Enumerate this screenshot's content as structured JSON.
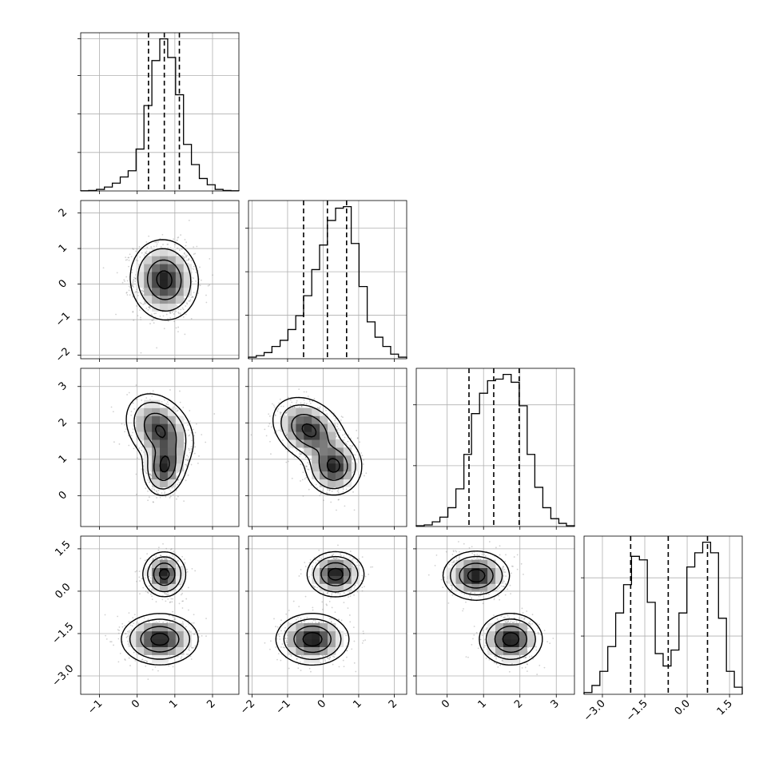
{
  "chart_data": {
    "type": "corner",
    "n_params": 4,
    "grid": true,
    "colors": {
      "ink": "#000000",
      "grid": "#b0b0b0",
      "frame": "#000000",
      "background": "#ffffff"
    },
    "parameters": [
      {
        "range": [
          -1.5,
          2.7
        ],
        "ticks": [
          -1,
          0,
          1,
          2
        ],
        "tick_labels": [
          "−1",
          "0",
          "1",
          "2"
        ]
      },
      {
        "range": [
          -2.1,
          2.35
        ],
        "ticks": [
          -2,
          -1,
          0,
          1,
          2
        ],
        "tick_labels": [
          "−2",
          "−1",
          "0",
          "1",
          "2"
        ]
      },
      {
        "range": [
          -0.85,
          3.5
        ],
        "ticks": [
          0,
          1,
          2,
          3
        ],
        "tick_labels": [
          "0",
          "1",
          "2",
          "3"
        ]
      },
      {
        "range": [
          -3.65,
          1.95
        ],
        "ticks": [
          -3.0,
          -1.5,
          0.0,
          1.5
        ],
        "tick_labels": [
          "−3.0",
          "−1.5",
          "0.0",
          "1.5"
        ]
      }
    ],
    "histograms": [
      {
        "bins": [
          -1.5,
          -1.29,
          -1.08,
          -0.87,
          -0.66,
          -0.45,
          -0.24,
          -0.03,
          0.18,
          0.39,
          0.6,
          0.81,
          1.02,
          1.23,
          1.44,
          1.65,
          1.86,
          2.07,
          2.28,
          2.49,
          2.7
        ],
        "counts": [
          0.001,
          0.003,
          0.01,
          0.025,
          0.05,
          0.09,
          0.13,
          0.27,
          0.55,
          0.84,
          0.98,
          0.86,
          0.62,
          0.3,
          0.17,
          0.08,
          0.04,
          0.01,
          0.003,
          0.001
        ],
        "quantiles": [
          0.3,
          0.72,
          1.12
        ],
        "ytick_fracs": [
          0.253,
          0.506,
          0.759,
          1.0
        ]
      },
      {
        "bins": [
          -2.1,
          -1.88,
          -1.66,
          -1.44,
          -1.21,
          -0.99,
          -0.77,
          -0.55,
          -0.32,
          -0.1,
          0.12,
          0.35,
          0.57,
          0.79,
          1.01,
          1.24,
          1.46,
          1.68,
          1.9,
          2.12,
          2.35
        ],
        "counts": [
          0.01,
          0.02,
          0.04,
          0.08,
          0.12,
          0.19,
          0.28,
          0.41,
          0.58,
          0.74,
          0.9,
          0.98,
          0.99,
          0.75,
          0.47,
          0.24,
          0.14,
          0.08,
          0.03,
          0.01
        ],
        "quantiles": [
          -0.55,
          0.12,
          0.66
        ],
        "ytick_fracs": [
          0.286,
          0.572,
          0.858
        ]
      },
      {
        "bins": [
          -0.85,
          -0.63,
          -0.41,
          -0.2,
          0.02,
          0.24,
          0.46,
          0.67,
          0.89,
          1.11,
          1.33,
          1.54,
          1.76,
          1.98,
          2.2,
          2.41,
          2.63,
          2.85,
          3.07,
          3.28,
          3.5
        ],
        "counts": [
          0.005,
          0.01,
          0.03,
          0.06,
          0.12,
          0.24,
          0.46,
          0.72,
          0.85,
          0.93,
          0.94,
          0.97,
          0.92,
          0.77,
          0.46,
          0.25,
          0.12,
          0.05,
          0.02,
          0.005
        ],
        "quantiles": [
          0.6,
          1.28,
          1.98
        ],
        "ytick_fracs": [
          0.4,
          0.8
        ]
      },
      {
        "bins": [
          -3.65,
          -3.37,
          -3.09,
          -2.81,
          -2.53,
          -2.25,
          -1.97,
          -1.69,
          -1.41,
          -1.13,
          -0.85,
          -0.57,
          -0.29,
          -0.01,
          0.27,
          0.55,
          0.83,
          1.11,
          1.39,
          1.67,
          1.95
        ],
        "counts": [
          0.01,
          0.05,
          0.13,
          0.27,
          0.46,
          0.62,
          0.78,
          0.76,
          0.52,
          0.23,
          0.16,
          0.25,
          0.46,
          0.72,
          0.8,
          0.86,
          0.8,
          0.43,
          0.13,
          0.04
        ],
        "quantiles": [
          -2.0,
          -0.67,
          0.72
        ],
        "ytick_fracs": [
          0.383,
          0.766
        ]
      }
    ],
    "pairs": [
      {
        "x": 0,
        "y": 1,
        "blobs": [
          {
            "mean": [
              0.72,
              0.12
            ],
            "sd": [
              0.4,
              0.5
            ],
            "rho": -0.05,
            "weight": 1.0
          }
        ],
        "contour_levels": [
          0.08,
          0.22,
          0.55,
          0.9
        ]
      },
      {
        "x": 0,
        "y": 2,
        "blobs": [
          {
            "mean": [
              0.72,
              0.78
            ],
            "sd": [
              0.25,
              0.35
            ],
            "rho": 0.1,
            "weight": 0.5
          },
          {
            "mean": [
              0.6,
              1.8
            ],
            "sd": [
              0.4,
              0.45
            ],
            "rho": -0.3,
            "weight": 0.5
          }
        ],
        "contour_levels": [
          0.08,
          0.22,
          0.55,
          0.9
        ]
      },
      {
        "x": 1,
        "y": 2,
        "blobs": [
          {
            "mean": [
              0.3,
              0.8
            ],
            "sd": [
              0.35,
              0.35
            ],
            "rho": 0.0,
            "weight": 0.5
          },
          {
            "mean": [
              -0.4,
              1.8
            ],
            "sd": [
              0.45,
              0.4
            ],
            "rho": -0.3,
            "weight": 0.5
          }
        ],
        "contour_levels": [
          0.08,
          0.22,
          0.55,
          0.9
        ]
      },
      {
        "x": 0,
        "y": 3,
        "blobs": [
          {
            "mean": [
              0.72,
              0.6
            ],
            "sd": [
              0.25,
              0.35
            ],
            "rho": 0.0,
            "weight": 0.5
          },
          {
            "mean": [
              0.6,
              -1.7
            ],
            "sd": [
              0.45,
              0.4
            ],
            "rho": 0.0,
            "weight": 0.5
          }
        ],
        "contour_levels": [
          0.08,
          0.22,
          0.55,
          0.9
        ]
      },
      {
        "x": 1,
        "y": 3,
        "blobs": [
          {
            "mean": [
              0.35,
              0.6
            ],
            "sd": [
              0.35,
              0.35
            ],
            "rho": 0.0,
            "weight": 0.5
          },
          {
            "mean": [
              -0.3,
              -1.7
            ],
            "sd": [
              0.45,
              0.4
            ],
            "rho": 0.0,
            "weight": 0.5
          }
        ],
        "contour_levels": [
          0.08,
          0.22,
          0.55,
          0.9
        ]
      },
      {
        "x": 2,
        "y": 3,
        "blobs": [
          {
            "mean": [
              0.8,
              0.55
            ],
            "sd": [
              0.4,
              0.38
            ],
            "rho": 0.0,
            "weight": 0.5
          },
          {
            "mean": [
              1.75,
              -1.7
            ],
            "sd": [
              0.38,
              0.4
            ],
            "rho": 0.0,
            "weight": 0.5
          }
        ],
        "contour_levels": [
          0.08,
          0.22,
          0.55,
          0.9
        ]
      }
    ]
  }
}
